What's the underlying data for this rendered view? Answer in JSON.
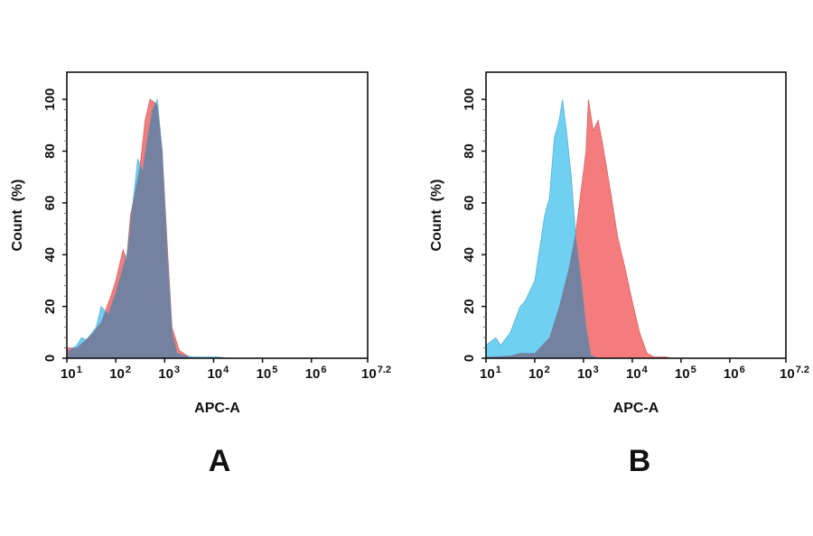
{
  "chart_data": [
    {
      "type": "area",
      "panel_label": "A",
      "xlabel": "APC-A",
      "ylabel": "Count  (%)",
      "xscale": "log10",
      "x_tick_labels": [
        {
          "base": "10",
          "exp": "1"
        },
        {
          "base": "10",
          "exp": "2"
        },
        {
          "base": "10",
          "exp": "3"
        },
        {
          "base": "10",
          "exp": "4"
        },
        {
          "base": "10",
          "exp": "5"
        },
        {
          "base": "10",
          "exp": "6"
        },
        {
          "base": "10",
          "exp": "7.2"
        }
      ],
      "x_tick_exponents": [
        1,
        2,
        3,
        4,
        5,
        6,
        7.2
      ],
      "y_ticks": [
        0,
        20,
        40,
        60,
        80,
        100
      ],
      "xlim_exponent": [
        1,
        7.15
      ],
      "ylim": [
        0,
        110.5
      ],
      "grid": false,
      "overlap_color": "#74819f",
      "series": [
        {
          "color": "#f47c7c",
          "x_exponent": [
            1,
            1.02,
            1.2,
            1.5,
            1.7,
            1.9,
            2.0,
            2.15,
            2.22,
            2.3,
            2.5,
            2.6,
            2.7,
            2.78,
            2.85,
            2.95,
            3.05,
            3.15,
            3.3,
            3.5,
            3.6
          ],
          "y": [
            0,
            4,
            4,
            9,
            14,
            24,
            30,
            42,
            38,
            55,
            75,
            92,
            100,
            99,
            98,
            80,
            45,
            12,
            3,
            0.5,
            0
          ]
        },
        {
          "color": "#6fd0f2",
          "x_exponent": [
            1,
            1.05,
            1.2,
            1.3,
            1.4,
            1.6,
            1.7,
            1.85,
            2.0,
            2.15,
            2.25,
            2.35,
            2.45,
            2.55,
            2.65,
            2.75,
            2.85,
            2.95,
            3.05,
            3.15,
            3.25,
            3.4,
            3.6,
            4.1,
            4.3
          ],
          "y": [
            0,
            3,
            5,
            8,
            7,
            12,
            20,
            17,
            25,
            35,
            42,
            60,
            77,
            72,
            85,
            96,
            100,
            80,
            40,
            10,
            2,
            1,
            0.5,
            0.5,
            0
          ]
        }
      ]
    },
    {
      "type": "area",
      "panel_label": "B",
      "xlabel": "APC-A",
      "ylabel": "Count  (%)",
      "xscale": "log10",
      "x_tick_labels": [
        {
          "base": "10",
          "exp": "1"
        },
        {
          "base": "10",
          "exp": "2"
        },
        {
          "base": "10",
          "exp": "3"
        },
        {
          "base": "10",
          "exp": "4"
        },
        {
          "base": "10",
          "exp": "5"
        },
        {
          "base": "10",
          "exp": "6"
        },
        {
          "base": "10",
          "exp": "7.2"
        }
      ],
      "x_tick_exponents": [
        1,
        2,
        3,
        4,
        5,
        6,
        7.2
      ],
      "y_ticks": [
        0,
        20,
        40,
        60,
        80,
        100
      ],
      "xlim_exponent": [
        1,
        7.15
      ],
      "ylim": [
        0,
        110.5
      ],
      "grid": false,
      "overlap_color": "#74819f",
      "series": [
        {
          "color": "#f47c7c",
          "x_exponent": [
            1,
            1.5,
            1.7,
            2.0,
            2.3,
            2.5,
            2.7,
            2.85,
            2.95,
            3.05,
            3.1,
            3.2,
            3.3,
            3.4,
            3.55,
            3.7,
            3.85,
            4.0,
            4.15,
            4.3,
            4.45,
            4.7,
            4.8
          ],
          "y": [
            0.5,
            1,
            2,
            2,
            8,
            20,
            35,
            50,
            65,
            80,
            100,
            88,
            92,
            82,
            65,
            47,
            35,
            22,
            10,
            2,
            0.5,
            0.5,
            0
          ]
        },
        {
          "color": "#6fd0f2",
          "x_exponent": [
            1,
            1.2,
            1.3,
            1.5,
            1.7,
            1.8,
            2.0,
            2.2,
            2.3,
            2.4,
            2.5,
            2.57,
            2.65,
            2.75,
            2.85,
            2.95,
            3.05,
            3.15,
            3.3
          ],
          "y": [
            5,
            8,
            5,
            10,
            20,
            22,
            30,
            55,
            62,
            85,
            92,
            100,
            88,
            70,
            45,
            30,
            12,
            1,
            0
          ]
        }
      ]
    }
  ]
}
